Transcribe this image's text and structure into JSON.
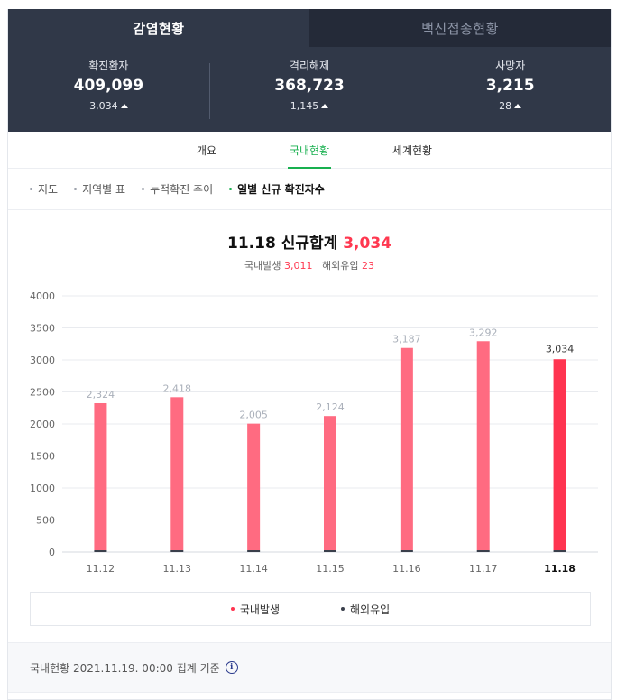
{
  "top_tabs": [
    {
      "label": "감염현황",
      "active": true
    },
    {
      "label": "백신접종현황",
      "active": false
    }
  ],
  "stats": [
    {
      "label": "확진환자",
      "value": "409,099",
      "delta": "3,034"
    },
    {
      "label": "격리해제",
      "value": "368,723",
      "delta": "1,145"
    },
    {
      "label": "사망자",
      "value": "3,215",
      "delta": "28"
    }
  ],
  "sub_tabs": [
    {
      "label": "개요",
      "active": false
    },
    {
      "label": "국내현황",
      "active": true
    },
    {
      "label": "세계현황",
      "active": false
    }
  ],
  "filters": [
    {
      "label": "지도",
      "active": false
    },
    {
      "label": "지역별 표",
      "active": false
    },
    {
      "label": "누적확진 추이",
      "active": false
    },
    {
      "label": "일별 신규 확진자수",
      "active": true
    }
  ],
  "headline": {
    "date": "11.18",
    "label": "신규합계",
    "total": "3,034",
    "domestic_label": "국내발생",
    "domestic": "3,011",
    "overseas_label": "해외유입",
    "overseas": "23"
  },
  "chart_data": {
    "type": "bar",
    "categories": [
      "11.12",
      "11.13",
      "11.14",
      "11.15",
      "11.16",
      "11.17",
      "11.18"
    ],
    "series": [
      {
        "name": "국내발생",
        "values": [
          2324,
          2418,
          2005,
          2124,
          3187,
          3292,
          3011
        ]
      },
      {
        "name": "해외유입",
        "values": [
          0,
          0,
          0,
          0,
          0,
          0,
          23
        ]
      }
    ],
    "data_labels": [
      "2,324",
      "2,418",
      "2,005",
      "2,124",
      "3,187",
      "3,292",
      "3,034"
    ],
    "totals": [
      2324,
      2418,
      2005,
      2124,
      3187,
      3292,
      3034
    ],
    "highlight_index": 6,
    "ylim": [
      0,
      4000
    ],
    "yticks": [
      0,
      500,
      1000,
      1500,
      2000,
      2500,
      3000,
      3500,
      4000
    ],
    "grid": true,
    "legend_position": "bottom",
    "colors": {
      "bar": "#ff6b81",
      "bar_highlight": "#ff3450",
      "overseas": "#3a3f4b",
      "grid": "#e9ebef"
    }
  },
  "legend": [
    {
      "label": "국내발생",
      "color": "#ff3450"
    },
    {
      "label": "해외유입",
      "color": "#3a3f4b"
    }
  ],
  "footer": {
    "text": "국내현황 2021.11.19. 00:00 집계 기준",
    "info_icon": "info-icon"
  }
}
